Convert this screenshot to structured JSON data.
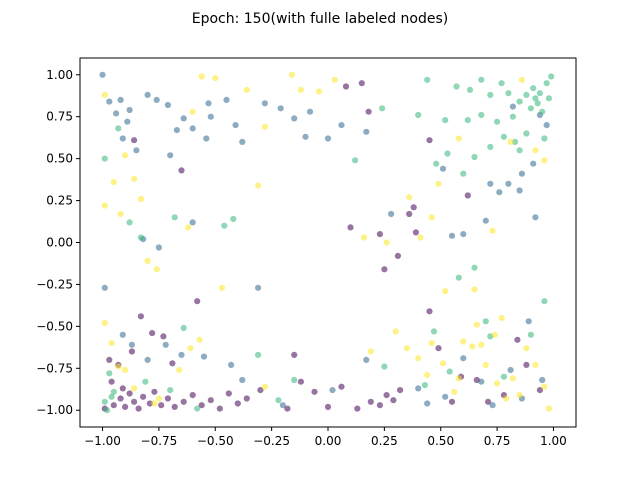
{
  "chart_data": {
    "type": "scatter",
    "title": "Epoch: 150(with fulle labeled nodes)",
    "xlabel": "",
    "ylabel": "",
    "xlim": [
      -1.1,
      1.1
    ],
    "ylim": [
      -1.1,
      1.1
    ],
    "xticks": [
      "−1.00",
      "−0.75",
      "−0.50",
      "−0.25",
      "0.00",
      "0.25",
      "0.50",
      "0.75",
      "1.00"
    ],
    "yticks": [
      "−1.00",
      "−0.75",
      "−0.50",
      "−0.25",
      "0.00",
      "0.25",
      "0.50",
      "0.75",
      "1.00"
    ],
    "xtick_values": [
      -1,
      -0.75,
      -0.5,
      -0.25,
      0,
      0.25,
      0.5,
      0.75,
      1
    ],
    "ytick_values": [
      -1,
      -0.75,
      -0.5,
      -0.25,
      0,
      0.25,
      0.5,
      0.75,
      1
    ],
    "grid": false,
    "colors": {
      "purple": "#440154",
      "blue": "#31688e",
      "green": "#35b779",
      "yellow": "#fde725"
    },
    "series": [
      {
        "color": "purple",
        "points": [
          [
            -0.95,
            -0.97
          ],
          [
            -0.92,
            -0.93
          ],
          [
            -0.9,
            -0.98
          ],
          [
            -0.88,
            -0.9
          ],
          [
            -0.86,
            -0.95
          ],
          [
            -0.84,
            -0.99
          ],
          [
            -0.82,
            -0.92
          ],
          [
            -0.79,
            -0.96
          ],
          [
            -0.77,
            -0.89
          ],
          [
            -0.74,
            -0.97
          ],
          [
            -0.71,
            -0.93
          ],
          [
            -0.68,
            -0.98
          ],
          [
            -0.64,
            -0.95
          ],
          [
            -0.6,
            -0.91
          ],
          [
            -0.56,
            -0.97
          ],
          [
            -0.52,
            -0.94
          ],
          [
            -0.48,
            -0.99
          ],
          [
            -0.44,
            -0.9
          ],
          [
            -0.4,
            -0.96
          ],
          [
            -0.36,
            -0.93
          ],
          [
            -0.3,
            -0.88
          ],
          [
            -0.18,
            -0.99
          ],
          [
            -0.12,
            -0.83
          ],
          [
            -0.06,
            -0.89
          ],
          [
            0.0,
            -0.98
          ],
          [
            0.06,
            -0.86
          ],
          [
            0.13,
            -0.99
          ],
          [
            0.19,
            -0.95
          ],
          [
            0.23,
            -0.97
          ],
          [
            0.26,
            -0.91
          ],
          [
            0.29,
            -0.94
          ],
          [
            0.32,
            -0.88
          ],
          [
            -0.86,
            0.61
          ],
          [
            -0.78,
            -0.54
          ],
          [
            -0.73,
            -0.56
          ],
          [
            -0.65,
            0.43
          ],
          [
            -0.58,
            -0.35
          ],
          [
            -0.15,
            -0.67
          ],
          [
            0.1,
            0.09
          ],
          [
            0.23,
            0.05
          ],
          [
            0.25,
            -0.16
          ],
          [
            0.31,
            -0.08
          ],
          [
            0.36,
            0.17
          ],
          [
            0.38,
            0.21
          ],
          [
            0.39,
            0.06
          ],
          [
            0.45,
            -0.41
          ],
          [
            0.49,
            -0.63
          ],
          [
            0.45,
            0.61
          ],
          [
            0.18,
            0.78
          ],
          [
            0.15,
            0.95
          ],
          [
            0.08,
            0.93
          ],
          [
            -0.97,
            -0.7
          ],
          [
            -0.93,
            -0.73
          ],
          [
            -0.83,
            -0.44
          ],
          [
            -0.69,
            -0.72
          ],
          [
            0.62,
            0.28
          ],
          [
            0.66,
            -0.82
          ],
          [
            0.71,
            -0.95
          ],
          [
            0.88,
            -0.73
          ],
          [
            0.94,
            -0.88
          ],
          [
            -0.99,
            -0.99
          ],
          [
            -0.96,
            -0.83
          ],
          [
            -0.87,
            -0.65
          ],
          [
            -0.91,
            -0.87
          ],
          [
            0.55,
            -0.95
          ],
          [
            0.59,
            -0.8
          ],
          [
            0.78,
            -0.91
          ],
          [
            0.84,
            -0.58
          ]
        ]
      },
      {
        "color": "blue",
        "points": [
          [
            -1.0,
            1.0
          ],
          [
            -0.97,
            0.84
          ],
          [
            -0.94,
            0.77
          ],
          [
            -0.92,
            0.85
          ],
          [
            -0.89,
            0.72
          ],
          [
            -0.85,
            0.55
          ],
          [
            -0.8,
            0.88
          ],
          [
            -0.76,
            0.85
          ],
          [
            -0.71,
            0.82
          ],
          [
            -0.64,
            0.74
          ],
          [
            -0.6,
            0.68
          ],
          [
            -0.54,
            0.62
          ],
          [
            -0.52,
            0.75
          ],
          [
            -0.45,
            0.85
          ],
          [
            -0.41,
            0.7
          ],
          [
            -0.38,
            0.6
          ],
          [
            -0.28,
            0.83
          ],
          [
            -0.21,
            0.8
          ],
          [
            -0.15,
            0.74
          ],
          [
            -0.1,
            0.63
          ],
          [
            -0.08,
            0.78
          ],
          [
            0.0,
            0.62
          ],
          [
            0.06,
            0.7
          ],
          [
            0.17,
            0.66
          ],
          [
            0.28,
            0.17
          ],
          [
            -0.82,
            0.02
          ],
          [
            -0.75,
            -0.03
          ],
          [
            -0.6,
            0.12
          ],
          [
            -0.31,
            -0.27
          ],
          [
            -0.99,
            -0.27
          ],
          [
            -0.91,
            -0.55
          ],
          [
            -0.87,
            -0.61
          ],
          [
            -0.8,
            -0.7
          ],
          [
            -0.72,
            -0.61
          ],
          [
            -0.65,
            -0.67
          ],
          [
            -0.55,
            -0.68
          ],
          [
            -0.43,
            -0.73
          ],
          [
            -0.38,
            -0.82
          ],
          [
            -0.2,
            -0.97
          ],
          [
            0.02,
            -0.88
          ],
          [
            0.17,
            -0.7
          ],
          [
            0.4,
            -0.87
          ],
          [
            0.44,
            -0.96
          ],
          [
            0.52,
            -0.92
          ],
          [
            0.6,
            -0.69
          ],
          [
            0.68,
            -0.83
          ],
          [
            0.73,
            -0.97
          ],
          [
            0.81,
            -0.76
          ],
          [
            0.86,
            -0.93
          ],
          [
            0.95,
            -0.82
          ],
          [
            0.89,
            -0.47
          ],
          [
            0.92,
            0.15
          ],
          [
            0.91,
            0.47
          ],
          [
            0.86,
            0.41
          ],
          [
            0.94,
            0.76
          ],
          [
            0.82,
            0.81
          ],
          [
            0.97,
            0.7
          ],
          [
            0.8,
            0.35
          ],
          [
            0.76,
            0.3
          ],
          [
            0.72,
            0.35
          ],
          [
            0.85,
            0.31
          ],
          [
            0.7,
            0.13
          ],
          [
            0.6,
            0.05
          ],
          [
            0.55,
            0.04
          ],
          [
            0.51,
            0.44
          ],
          [
            -0.67,
            0.67
          ],
          [
            -0.53,
            0.83
          ],
          [
            -0.91,
            0.62
          ],
          [
            -0.88,
            0.79
          ],
          [
            -0.7,
            0.52
          ]
        ]
      },
      {
        "color": "green",
        "points": [
          [
            -0.99,
            0.5
          ],
          [
            -0.93,
            0.68
          ],
          [
            -0.88,
            0.12
          ],
          [
            -0.83,
            0.03
          ],
          [
            -0.68,
            0.15
          ],
          [
            -0.46,
            0.1
          ],
          [
            -0.97,
            -0.78
          ],
          [
            -0.95,
            -0.89
          ],
          [
            -0.99,
            -0.95
          ],
          [
            -0.98,
            -1.0
          ],
          [
            -0.81,
            -0.83
          ],
          [
            -0.7,
            -0.88
          ],
          [
            -0.64,
            -0.51
          ],
          [
            -0.58,
            -0.99
          ],
          [
            -0.31,
            -0.67
          ],
          [
            -0.22,
            -0.94
          ],
          [
            -0.15,
            -0.82
          ],
          [
            0.25,
            -0.74
          ],
          [
            0.43,
            -0.85
          ],
          [
            0.47,
            -0.53
          ],
          [
            0.54,
            -0.77
          ],
          [
            0.58,
            -0.21
          ],
          [
            0.65,
            -0.15
          ],
          [
            0.7,
            -0.47
          ],
          [
            0.72,
            -0.56
          ],
          [
            0.78,
            -0.8
          ],
          [
            0.9,
            -0.55
          ],
          [
            0.96,
            -0.35
          ],
          [
            0.63,
            0.91
          ],
          [
            0.68,
            0.97
          ],
          [
            0.72,
            0.88
          ],
          [
            0.77,
            0.95
          ],
          [
            0.8,
            0.89
          ],
          [
            0.82,
            0.75
          ],
          [
            0.85,
            0.84
          ],
          [
            0.88,
            0.88
          ],
          [
            0.9,
            0.8
          ],
          [
            0.91,
            0.92
          ],
          [
            0.92,
            0.86
          ],
          [
            0.93,
            0.83
          ],
          [
            0.95,
            0.78
          ],
          [
            0.97,
            0.95
          ],
          [
            0.99,
            0.99
          ],
          [
            0.88,
            0.65
          ],
          [
            0.85,
            0.55
          ],
          [
            0.83,
            0.6
          ],
          [
            0.78,
            0.63
          ],
          [
            0.72,
            0.57
          ],
          [
            0.65,
            0.51
          ],
          [
            0.6,
            0.41
          ],
          [
            0.53,
            0.53
          ],
          [
            0.48,
            0.47
          ],
          [
            0.52,
            0.73
          ],
          [
            0.57,
            0.93
          ],
          [
            0.62,
            0.73
          ],
          [
            0.68,
            0.76
          ],
          [
            0.75,
            0.72
          ],
          [
            0.44,
            0.97
          ],
          [
            0.4,
            0.76
          ],
          [
            0.24,
            0.8
          ],
          [
            0.12,
            0.49
          ],
          [
            0.96,
            0.62
          ],
          [
            0.94,
            0.89
          ],
          [
            0.98,
            0.86
          ],
          [
            -0.42,
            0.14
          ],
          [
            -0.96,
            -0.92
          ]
        ]
      },
      {
        "color": "yellow",
        "points": [
          [
            -0.99,
            0.88
          ],
          [
            -0.99,
            0.22
          ],
          [
            -0.95,
            0.36
          ],
          [
            -0.92,
            0.17
          ],
          [
            -0.9,
            0.52
          ],
          [
            -0.86,
            0.38
          ],
          [
            -0.83,
            0.26
          ],
          [
            -0.8,
            -0.11
          ],
          [
            -0.76,
            -0.16
          ],
          [
            -0.62,
            0.09
          ],
          [
            -0.6,
            0.78
          ],
          [
            -0.56,
            0.99
          ],
          [
            -0.5,
            0.98
          ],
          [
            -0.47,
            -0.27
          ],
          [
            -0.36,
            0.91
          ],
          [
            -0.31,
            0.34
          ],
          [
            -0.28,
            0.69
          ],
          [
            -0.16,
            1.0
          ],
          [
            -0.12,
            0.91
          ],
          [
            -0.04,
            0.9
          ],
          [
            0.03,
            0.97
          ],
          [
            0.16,
            0.03
          ],
          [
            0.26,
            0.0
          ],
          [
            -0.99,
            -0.48
          ],
          [
            -0.96,
            -0.6
          ],
          [
            -0.93,
            -0.74
          ],
          [
            -0.9,
            -0.76
          ],
          [
            -0.86,
            -0.87
          ],
          [
            -0.77,
            -0.96
          ],
          [
            -0.75,
            -0.93
          ],
          [
            -0.66,
            -0.76
          ],
          [
            -0.61,
            -0.63
          ],
          [
            -0.57,
            -0.58
          ],
          [
            -0.28,
            -0.86
          ],
          [
            0.19,
            -0.65
          ],
          [
            0.3,
            -0.53
          ],
          [
            0.35,
            -0.63
          ],
          [
            0.4,
            -0.69
          ],
          [
            0.44,
            -0.79
          ],
          [
            0.46,
            -0.6
          ],
          [
            0.51,
            -0.72
          ],
          [
            0.56,
            -0.89
          ],
          [
            0.58,
            -0.81
          ],
          [
            0.6,
            -0.59
          ],
          [
            0.64,
            -0.62
          ],
          [
            0.66,
            -0.49
          ],
          [
            0.68,
            -0.61
          ],
          [
            0.7,
            -0.73
          ],
          [
            0.74,
            -0.55
          ],
          [
            0.75,
            -0.84
          ],
          [
            0.77,
            -0.45
          ],
          [
            0.79,
            -0.93
          ],
          [
            0.82,
            -0.81
          ],
          [
            0.85,
            -0.91
          ],
          [
            0.88,
            -0.63
          ],
          [
            0.92,
            -0.73
          ],
          [
            0.96,
            -0.86
          ],
          [
            0.98,
            -0.99
          ],
          [
            0.46,
            0.15
          ],
          [
            0.52,
            -0.29
          ],
          [
            0.58,
            0.62
          ],
          [
            0.65,
            -0.28
          ],
          [
            0.73,
            0.07
          ],
          [
            0.81,
            0.6
          ],
          [
            0.86,
            0.97
          ],
          [
            0.92,
            0.55
          ],
          [
            0.96,
            0.49
          ],
          [
            0.41,
            0.03
          ],
          [
            0.49,
            0.35
          ],
          [
            0.36,
            0.27
          ]
        ]
      }
    ]
  }
}
